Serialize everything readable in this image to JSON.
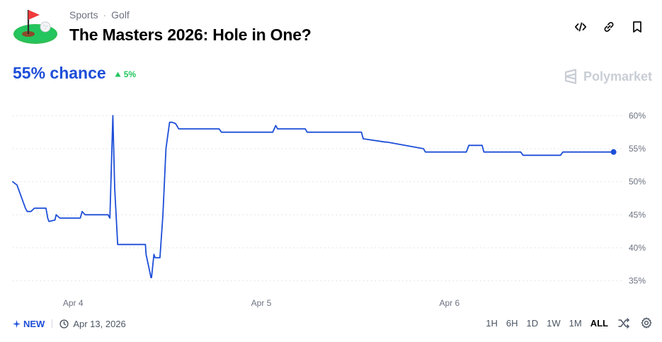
{
  "header": {
    "category": "Sports",
    "subcategory": "Golf",
    "title": "The Masters 2026: Hole in One?"
  },
  "icons": {
    "logo": "golf-flag-icon",
    "embed": "code-icon",
    "link": "link-icon",
    "bookmark": "bookmark-icon",
    "brand": "polymarket-logo-icon",
    "delta": "triangle-up-icon",
    "new": "sparkle-icon",
    "date": "clock-icon",
    "shuffle": "shuffle-icon",
    "settings": "gear-icon"
  },
  "summary": {
    "chance": "55% chance",
    "delta": "5%"
  },
  "brand": {
    "name": "Polymarket"
  },
  "footer": {
    "new_label": "NEW",
    "date": "Apr 13, 2026",
    "ranges": [
      "1H",
      "6H",
      "1D",
      "1W",
      "1M",
      "ALL"
    ],
    "active_range": "ALL"
  },
  "colors": {
    "line": "#1d4ed8",
    "accent": "#1d4ed8",
    "up": "#22c55e",
    "grid": "#d9dde3",
    "tick": "#6b7280"
  },
  "chart_data": {
    "type": "line",
    "title": "",
    "xlabel": "",
    "ylabel": "",
    "x_ticks": [
      "Apr 4",
      "Apr 5",
      "Apr 6"
    ],
    "y_ticks": [
      60,
      55,
      50,
      45,
      40,
      35
    ],
    "y_tick_labels": [
      "60%",
      "55%",
      "50%",
      "45%",
      "40%",
      "35%"
    ],
    "ylim": [
      32.5,
      62.5
    ],
    "xlim": [
      0,
      1
    ],
    "grid": true,
    "legend": "none",
    "series": [
      {
        "x": [
          0,
          0.007,
          0.013,
          0.021,
          0.024,
          0.03,
          0.036,
          0.04,
          0.055,
          0.058,
          0.06,
          0.07,
          0.072,
          0.078,
          0.081,
          0.089,
          0.096,
          0.112,
          0.115,
          0.12,
          0.158,
          0.161,
          0.166,
          0.169,
          0.174,
          0.22,
          0.221,
          0.228,
          0.229,
          0.23,
          0.234,
          0.236,
          0.24,
          0.244,
          0.249,
          0.254,
          0.26,
          0.264,
          0.27,
          0.272,
          0.275,
          0.342,
          0.346,
          0.431,
          0.436,
          0.439,
          0.443,
          0.485,
          0.488,
          0.578,
          0.581,
          0.618,
          0.621,
          0.681,
          0.684,
          0.752,
          0.756,
          0.778,
          0.781,
          0.842,
          0.846,
          0.908,
          0.912,
          0.996
        ],
        "values": [
          50,
          49.5,
          48,
          46,
          45.5,
          45.5,
          46,
          46,
          46,
          44.5,
          44,
          44.2,
          45,
          44.5,
          44.5,
          44.5,
          44.5,
          44.5,
          45.5,
          45,
          45,
          44.5,
          60,
          49,
          40.5,
          40.5,
          39,
          36,
          35.5,
          35.5,
          39,
          38.5,
          38.5,
          38.5,
          45,
          55,
          59,
          59,
          58.8,
          58.5,
          58,
          58,
          57.5,
          57.5,
          58.5,
          58,
          58,
          58,
          57.5,
          57.5,
          56.5,
          56,
          56,
          55,
          54.5,
          54.5,
          55.5,
          55.5,
          54.5,
          54.5,
          54,
          54,
          54.5,
          54.5
        ],
        "last": 54.5
      }
    ]
  }
}
